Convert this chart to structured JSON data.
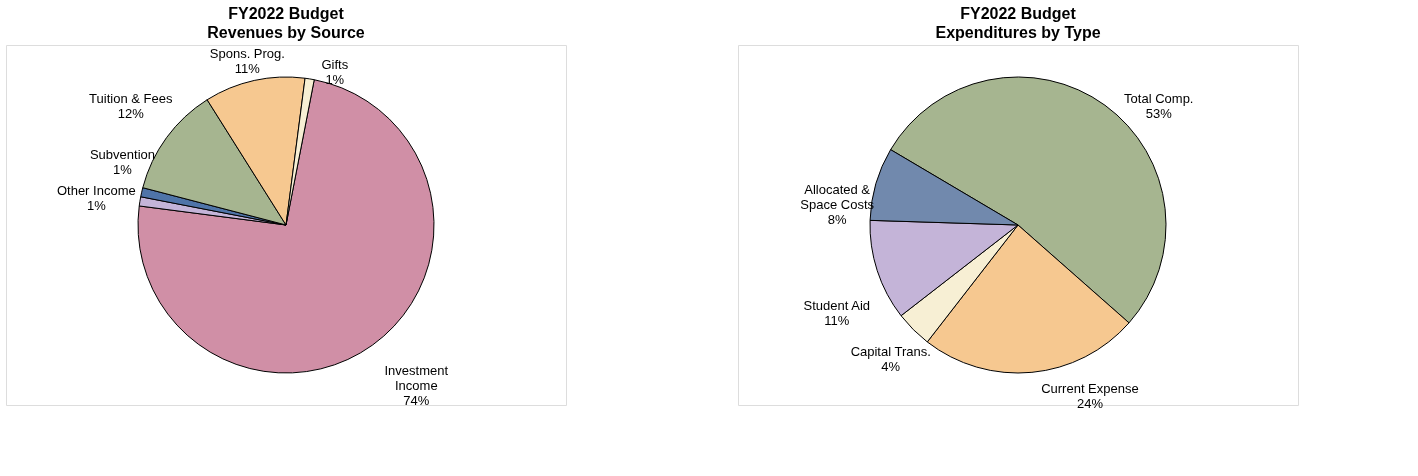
{
  "chart_data": [
    {
      "type": "pie",
      "title": "FY2022 Budget",
      "subtitle": "Revenues by Source",
      "categories": [
        "Investment Income",
        "Other Income",
        "Subvention",
        "Tuition & Fees",
        "Spons. Prog.",
        "Gifts"
      ],
      "values": [
        74,
        1,
        1,
        12,
        11,
        1
      ],
      "colors": [
        "#d08fa6",
        "#c4b4d8",
        "#4f74a8",
        "#a6b590",
        "#f6c890",
        "#f7efd4"
      ],
      "value_labels": [
        "74%",
        "1%",
        "1%",
        "12%",
        "11%",
        "1%"
      ]
    },
    {
      "type": "pie",
      "title": "FY2022 Budget",
      "subtitle": "Expenditures by Type",
      "categories": [
        "Total Comp.",
        "Current Expense",
        "Capital Trans.",
        "Student Aid",
        "Allocated & Space Costs"
      ],
      "values": [
        53,
        24,
        4,
        11,
        8
      ],
      "colors": [
        "#a6b590",
        "#f6c890",
        "#f7efd4",
        "#c4b4d8",
        "#7189ad"
      ],
      "value_labels": [
        "53%",
        "24%",
        "4%",
        "11%",
        "8%"
      ]
    }
  ]
}
